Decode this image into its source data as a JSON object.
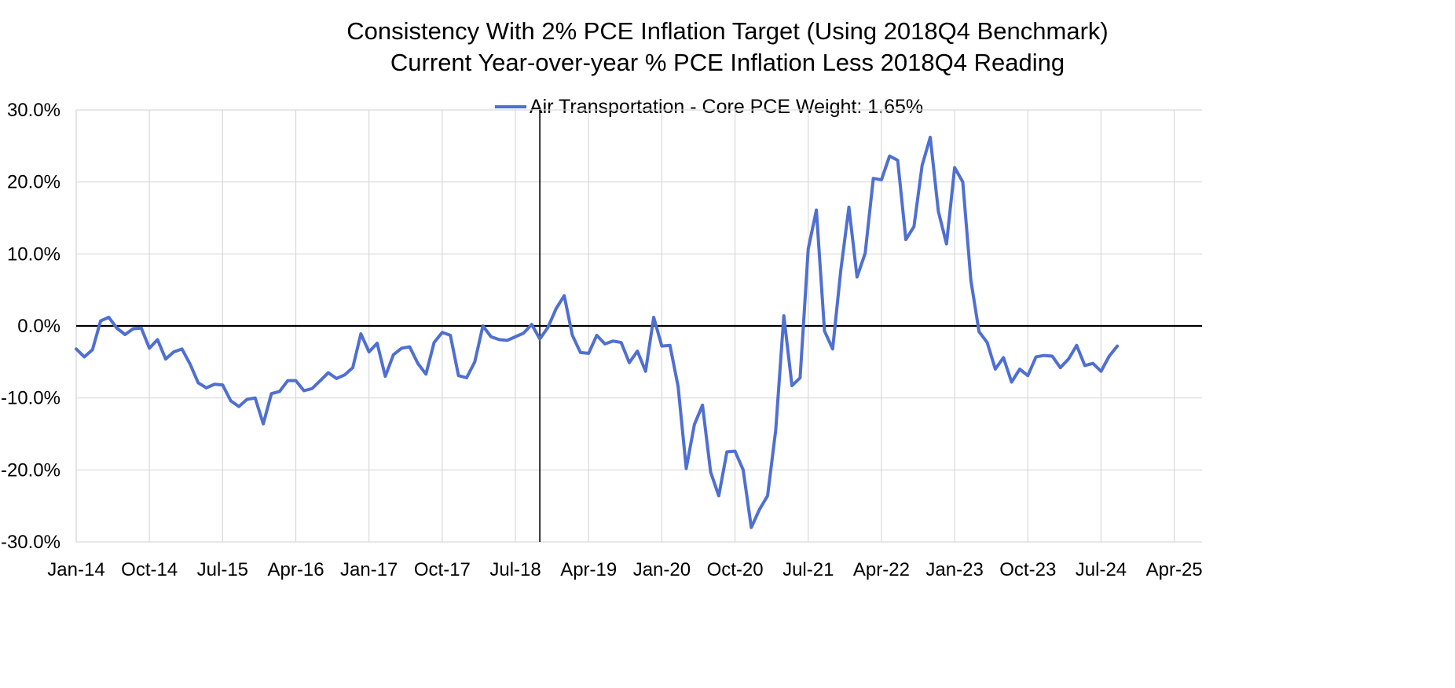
{
  "chart_data": {
    "type": "line",
    "title": "Consistency With 2% PCE Inflation Target (Using 2018Q4 Benchmark)",
    "subtitle": "Current Year-over-year % PCE Inflation Less 2018Q4 Reading",
    "legend_position": "top-center",
    "grid": true,
    "colors": {
      "series": "#4f6fd1",
      "grid": "#d9d9d9",
      "zero_line": "#000000",
      "marker_line": "#000000"
    },
    "x_range": [
      "2014-01",
      "2025-05"
    ],
    "x_ticks": [
      "Jan-14",
      "Oct-14",
      "Jul-15",
      "Apr-16",
      "Jan-17",
      "Oct-17",
      "Jul-18",
      "Apr-19",
      "Jan-20",
      "Oct-20",
      "Jul-21",
      "Apr-22",
      "Jan-23",
      "Oct-23",
      "Jul-24",
      "Apr-25"
    ],
    "y_ticks": [
      "30.0%",
      "20.0%",
      "10.0%",
      "0.0%",
      "-10.0%",
      "-20.0%",
      "-30.0%"
    ],
    "ylim": [
      -30,
      30
    ],
    "reference_line": {
      "date": "2018-10"
    },
    "start": "2014-01",
    "series": [
      {
        "name": "Air Transportation - Core PCE Weight: 1.65%",
        "values": [
          -3.2,
          -4.3,
          -3.3,
          0.7,
          1.2,
          -0.3,
          -1.2,
          -0.4,
          -0.3,
          -3.1,
          -1.9,
          -4.6,
          -3.6,
          -3.2,
          -5.3,
          -7.9,
          -8.6,
          -8.1,
          -8.2,
          -10.4,
          -11.2,
          -10.2,
          -10.0,
          -13.6,
          -9.4,
          -9.1,
          -7.6,
          -7.6,
          -9.0,
          -8.7,
          -7.6,
          -6.5,
          -7.3,
          -6.8,
          -5.8,
          -1.1,
          -3.6,
          -2.4,
          -7.0,
          -4.0,
          -3.1,
          -2.9,
          -5.2,
          -6.7,
          -2.3,
          -0.9,
          -1.3,
          -6.9,
          -7.2,
          -5.0,
          0.0,
          -1.5,
          -1.9,
          -2.0,
          -1.5,
          -1.0,
          0.2,
          -1.8,
          -0.2,
          2.4,
          4.2,
          -1.3,
          -3.7,
          -3.8,
          -1.3,
          -2.5,
          -2.1,
          -2.3,
          -5.1,
          -3.5,
          -6.3,
          1.2,
          -2.8,
          -2.7,
          -8.4,
          -19.8,
          -13.7,
          -11.0,
          -20.3,
          -23.6,
          -17.5,
          -17.4,
          -20.0,
          -28.0,
          -25.5,
          -23.6,
          -14.5,
          1.4,
          -8.3,
          -7.2,
          10.7,
          16.1,
          -0.7,
          -3.2,
          7.7,
          16.5,
          6.8,
          10.1,
          20.5,
          20.3,
          23.6,
          23.0,
          12.0,
          13.8,
          22.3,
          26.2,
          15.9,
          11.4,
          22.0,
          20.0,
          6.3,
          -0.8,
          -2.3,
          -6.0,
          -4.4,
          -7.8,
          -6.0,
          -6.9,
          -4.3,
          -4.1,
          -4.2,
          -5.8,
          -4.6,
          -2.7,
          -5.5,
          -5.2,
          -6.3,
          -4.2,
          -2.8
        ]
      }
    ]
  }
}
